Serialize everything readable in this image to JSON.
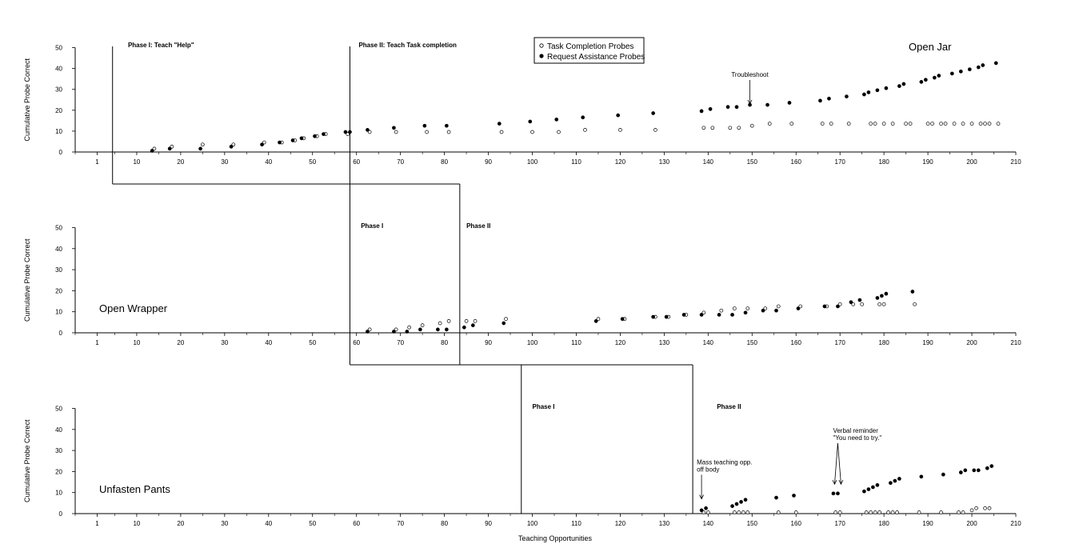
{
  "chart_data": {
    "type": "scatter",
    "xlabel": "Teaching Opportunities",
    "legend": {
      "placement": "top-center",
      "entries": [
        {
          "marker": "open",
          "label": "Task Completion Probes"
        },
        {
          "marker": "filled",
          "label": "Request Assistance Probes"
        }
      ]
    },
    "x_ticks": [
      1,
      10,
      20,
      30,
      40,
      50,
      60,
      70,
      80,
      90,
      100,
      110,
      120,
      130,
      140,
      150,
      160,
      170,
      180,
      190,
      200,
      210
    ],
    "xlim": [
      -4,
      210
    ],
    "panels": [
      {
        "name": "Open Jar",
        "ylabel": "Cumulative Probe Correct",
        "ylim": [
          0,
          50
        ],
        "y_ticks": [
          0,
          10,
          20,
          30,
          40,
          50
        ],
        "phase_change_x": [
          4.5,
          58.5
        ],
        "phase_labels": [
          {
            "text": "Phase I: Teach \"Help\"",
            "x": 8
          },
          {
            "text": "Phase II: Teach Task completion",
            "x": 60.5
          }
        ],
        "annotations": [
          {
            "text": "Troubleshoot",
            "x": 149.5,
            "y_point": 23,
            "y_text": 36
          }
        ],
        "series": [
          {
            "name": "Task Completion Probes",
            "marker": "open",
            "points": [
              [
                14,
                1
              ],
              [
                18,
                2
              ],
              [
                25,
                3
              ],
              [
                32,
                3
              ],
              [
                39,
                4
              ],
              [
                43,
                4
              ],
              [
                46,
                5
              ],
              [
                48,
                6
              ],
              [
                51,
                7
              ],
              [
                53,
                8
              ],
              [
                58,
                8
              ],
              [
                63,
                9
              ],
              [
                69,
                9
              ],
              [
                76,
                9
              ],
              [
                81,
                9
              ],
              [
                93,
                9
              ],
              [
                100,
                9
              ],
              [
                106,
                9
              ],
              [
                112,
                10
              ],
              [
                120,
                10
              ],
              [
                128,
                10
              ],
              [
                139,
                11
              ],
              [
                141,
                11
              ],
              [
                145,
                11
              ],
              [
                147,
                11
              ],
              [
                150,
                12
              ],
              [
                154,
                13
              ],
              [
                159,
                13
              ],
              [
                166,
                13
              ],
              [
                168,
                13
              ],
              [
                172,
                13
              ],
              [
                177,
                13
              ],
              [
                178,
                13
              ],
              [
                180,
                13
              ],
              [
                182,
                13
              ],
              [
                185,
                13
              ],
              [
                186,
                13
              ],
              [
                190,
                13
              ],
              [
                191,
                13
              ],
              [
                193,
                13
              ],
              [
                194,
                13
              ],
              [
                196,
                13
              ],
              [
                198,
                13
              ],
              [
                200,
                13
              ],
              [
                202,
                13
              ],
              [
                203,
                13
              ],
              [
                204,
                13
              ],
              [
                206,
                13
              ]
            ]
          },
          {
            "name": "Request Assistance Probes",
            "marker": "filled",
            "points": [
              [
                13.5,
                0
              ],
              [
                17.5,
                1
              ],
              [
                24.5,
                1
              ],
              [
                31.5,
                2
              ],
              [
                38.5,
                3
              ],
              [
                42.5,
                4
              ],
              [
                45.5,
                5
              ],
              [
                47.5,
                6
              ],
              [
                50.5,
                7
              ],
              [
                52.5,
                8
              ],
              [
                57.5,
                9
              ],
              [
                58.5,
                9
              ],
              [
                62.5,
                10
              ],
              [
                68.5,
                11
              ],
              [
                75.5,
                12
              ],
              [
                80.5,
                12
              ],
              [
                92.5,
                13
              ],
              [
                99.5,
                14
              ],
              [
                105.5,
                15
              ],
              [
                111.5,
                16
              ],
              [
                119.5,
                17
              ],
              [
                127.5,
                18
              ],
              [
                138.5,
                19
              ],
              [
                140.5,
                20
              ],
              [
                144.5,
                21
              ],
              [
                146.5,
                21
              ],
              [
                149.5,
                22
              ],
              [
                153.5,
                22
              ],
              [
                158.5,
                23
              ],
              [
                165.5,
                24
              ],
              [
                167.5,
                25
              ],
              [
                171.5,
                26
              ],
              [
                175.5,
                27
              ],
              [
                176.5,
                28
              ],
              [
                178.5,
                29
              ],
              [
                180.5,
                30
              ],
              [
                183.5,
                31
              ],
              [
                184.5,
                32
              ],
              [
                188.5,
                33
              ],
              [
                189.5,
                34
              ],
              [
                191.5,
                35
              ],
              [
                192.5,
                36
              ],
              [
                195.5,
                37
              ],
              [
                197.5,
                38
              ],
              [
                199.5,
                39
              ],
              [
                201.5,
                40
              ],
              [
                202.5,
                41
              ],
              [
                205.5,
                42
              ]
            ]
          }
        ]
      },
      {
        "name": "Open Wrapper",
        "ylabel": "Cumulative Probe Correct",
        "ylim": [
          0,
          50
        ],
        "y_ticks": [
          0,
          10,
          20,
          30,
          40,
          50
        ],
        "phase_change_x": [
          58.5,
          83.5
        ],
        "phase_labels": [
          {
            "text": "Phase I",
            "x": 61
          },
          {
            "text": "Phase II",
            "x": 85
          }
        ],
        "annotations": [],
        "series": [
          {
            "name": "Task Completion Probes",
            "marker": "open",
            "points": [
              [
                63,
                1
              ],
              [
                69,
                1
              ],
              [
                72,
                2
              ],
              [
                75,
                3
              ],
              [
                79,
                4
              ],
              [
                81,
                5
              ],
              [
                85,
                5
              ],
              [
                87,
                5
              ],
              [
                94,
                6
              ],
              [
                115,
                6
              ],
              [
                121,
                6
              ],
              [
                128,
                7
              ],
              [
                131,
                7
              ],
              [
                135,
                8
              ],
              [
                139,
                9
              ],
              [
                143,
                10
              ],
              [
                146,
                11
              ],
              [
                149,
                11
              ],
              [
                153,
                11
              ],
              [
                156,
                12
              ],
              [
                161,
                12
              ],
              [
                167,
                12
              ],
              [
                170,
                13
              ],
              [
                173,
                13
              ],
              [
                175,
                13
              ],
              [
                179,
                13
              ],
              [
                180,
                13
              ],
              [
                187,
                13
              ]
            ]
          },
          {
            "name": "Request Assistance Probes",
            "marker": "filled",
            "points": [
              [
                62.5,
                0
              ],
              [
                68.5,
                0
              ],
              [
                71.5,
                0
              ],
              [
                74.5,
                1
              ],
              [
                78.5,
                1
              ],
              [
                80.5,
                1
              ],
              [
                84.5,
                2
              ],
              [
                86.5,
                3
              ],
              [
                93.5,
                4
              ],
              [
                114.5,
                5
              ],
              [
                120.5,
                6
              ],
              [
                127.5,
                7
              ],
              [
                130.5,
                7
              ],
              [
                134.5,
                8
              ],
              [
                138.5,
                8
              ],
              [
                142.5,
                8
              ],
              [
                145.5,
                8
              ],
              [
                148.5,
                9
              ],
              [
                152.5,
                10
              ],
              [
                155.5,
                10
              ],
              [
                160.5,
                11
              ],
              [
                166.5,
                12
              ],
              [
                169.5,
                12
              ],
              [
                172.5,
                14
              ],
              [
                174.5,
                15
              ],
              [
                178.5,
                16
              ],
              [
                179.5,
                17
              ],
              [
                180.5,
                18
              ],
              [
                186.5,
                19
              ]
            ]
          }
        ]
      },
      {
        "name": "Unfasten Pants",
        "ylabel": "Cumulative Probe Correct",
        "ylim": [
          0,
          50
        ],
        "y_ticks": [
          0,
          10,
          20,
          30,
          40,
          50
        ],
        "phase_change_x": [
          97.5,
          136.5
        ],
        "phase_labels": [
          {
            "text": "Phase I",
            "x": 100
          },
          {
            "text": "Phase II",
            "x": 142
          }
        ],
        "annotations": [
          {
            "text": "Mass teaching opp.\noff body",
            "x": 138.5,
            "y_point": 7,
            "y_text": 20
          },
          {
            "text": "Verbal reminder\n\"You need to try.\"",
            "x": 169.5,
            "y_point": 14,
            "y_text": 35
          }
        ],
        "series": [
          {
            "name": "Task Completion Probes",
            "marker": "open",
            "points": [
              [
                139,
                0
              ],
              [
                140,
                0
              ],
              [
                146,
                0
              ],
              [
                147,
                0
              ],
              [
                148,
                0
              ],
              [
                149,
                0
              ],
              [
                156,
                0
              ],
              [
                160,
                0
              ],
              [
                169,
                0
              ],
              [
                170,
                0
              ],
              [
                176,
                0
              ],
              [
                177,
                0
              ],
              [
                178,
                0
              ],
              [
                179,
                0
              ],
              [
                181,
                0
              ],
              [
                182,
                0
              ],
              [
                183,
                0
              ],
              [
                188,
                0
              ],
              [
                193,
                0
              ],
              [
                197,
                0
              ],
              [
                198,
                0
              ],
              [
                200,
                1
              ],
              [
                201,
                2
              ],
              [
                203,
                2
              ],
              [
                204,
                2
              ]
            ]
          },
          {
            "name": "Request Assistance Probes",
            "marker": "filled",
            "points": [
              [
                138.5,
                1
              ],
              [
                139.5,
                2
              ],
              [
                145.5,
                3
              ],
              [
                146.5,
                4
              ],
              [
                147.5,
                5
              ],
              [
                148.5,
                6
              ],
              [
                155.5,
                7
              ],
              [
                159.5,
                8
              ],
              [
                168.5,
                9
              ],
              [
                169.5,
                9
              ],
              [
                175.5,
                10
              ],
              [
                176.5,
                11
              ],
              [
                177.5,
                12
              ],
              [
                178.5,
                13
              ],
              [
                181.5,
                14
              ],
              [
                182.5,
                15
              ],
              [
                183.5,
                16
              ],
              [
                188.5,
                17
              ],
              [
                193.5,
                18
              ],
              [
                197.5,
                19
              ],
              [
                198.5,
                20
              ],
              [
                200.5,
                20
              ],
              [
                201.5,
                20
              ],
              [
                203.5,
                21
              ],
              [
                204.5,
                22
              ]
            ]
          }
        ]
      }
    ]
  }
}
